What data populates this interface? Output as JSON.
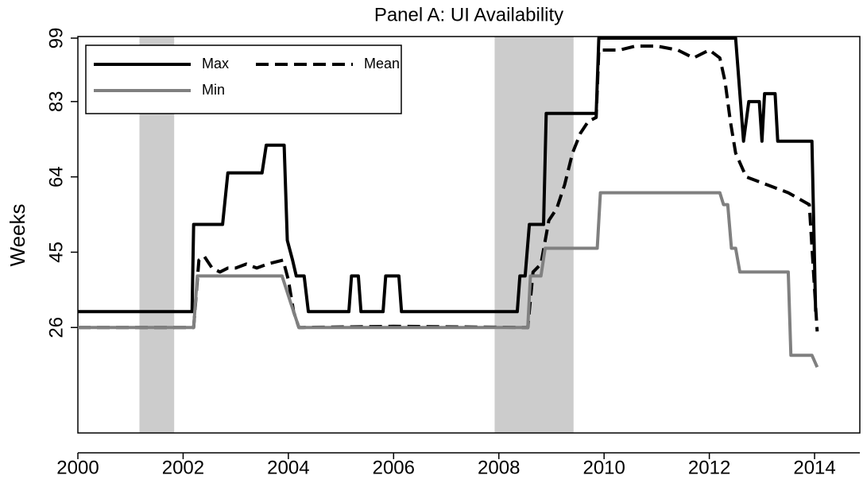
{
  "chart_data": {
    "type": "line",
    "title": "Panel A:  UI Availability",
    "y_label": "Weeks",
    "xlim": [
      2000,
      2014.86
    ],
    "xticks": [
      2000,
      2002,
      2004,
      2006,
      2008,
      2010,
      2012,
      2014
    ],
    "ylim": [
      0,
      99
    ],
    "yticks": [
      26,
      45,
      64,
      83,
      99
    ],
    "shaded_regions": [
      [
        2001.17,
        2001.83
      ],
      [
        2007.92,
        2009.42
      ]
    ],
    "shade_color": "#cccccc",
    "series": [
      {
        "name": "Max",
        "color": "#000000",
        "dash": "solid",
        "x": [
          2000,
          2002.17,
          2002.2,
          2002.75,
          2002.85,
          2003.5,
          2003.58,
          2003.92,
          2003.98,
          2004.08,
          2004.15,
          2004.3,
          2004.38,
          2005.15,
          2005.2,
          2005.33,
          2005.38,
          2005.8,
          2005.85,
          2006.1,
          2006.15,
          2008.35,
          2008.4,
          2008.5,
          2008.58,
          2008.85,
          2008.9,
          2009.85,
          2009.9,
          2012.5,
          2012.65,
          2012.75,
          2012.95,
          2013.0,
          2013.05,
          2013.25,
          2013.3,
          2013.95,
          2014.02
        ],
        "values": [
          30,
          30,
          52,
          52,
          65,
          65,
          72,
          72,
          48,
          43,
          39,
          39,
          30,
          30,
          39,
          39,
          30,
          30,
          39,
          39,
          30,
          30,
          39,
          39,
          52,
          52,
          80,
          80,
          99,
          99,
          73,
          83,
          83,
          73,
          85,
          85,
          73,
          73,
          30
        ]
      },
      {
        "name": "Mean",
        "color": "#000000",
        "dash": "dashed",
        "x": [
          2000,
          2002.2,
          2002.3,
          2002.4,
          2002.55,
          2002.7,
          2002.85,
          2003.0,
          2003.2,
          2003.4,
          2003.6,
          2003.9,
          2004.0,
          2004.1,
          2004.2,
          2006.0,
          2008.55,
          2008.65,
          2008.8,
          2008.95,
          2009.1,
          2009.25,
          2009.4,
          2009.55,
          2009.7,
          2009.85,
          2009.9,
          2010.3,
          2010.6,
          2011.0,
          2011.4,
          2011.7,
          2012.0,
          2012.2,
          2012.3,
          2012.4,
          2012.5,
          2012.7,
          2012.9,
          2013.1,
          2013.5,
          2013.9,
          2014.05
        ],
        "values": [
          26,
          26,
          43,
          44,
          41,
          40,
          41,
          41,
          42,
          41,
          42,
          43,
          38,
          30,
          26,
          26.3,
          26,
          40,
          42,
          53,
          56,
          62,
          70,
          75,
          78,
          79,
          96,
          96,
          97,
          97,
          96,
          94,
          96,
          94,
          88,
          78,
          70,
          64,
          63,
          62,
          60,
          57,
          25
        ]
      },
      {
        "name": "Min",
        "color": "#808080",
        "dash": "solid",
        "x": [
          2000,
          2002.2,
          2002.27,
          2003.88,
          2004.05,
          2004.2,
          2008.55,
          2008.6,
          2008.8,
          2008.88,
          2009.87,
          2009.93,
          2012.2,
          2012.27,
          2012.35,
          2012.42,
          2012.5,
          2012.58,
          2013.5,
          2013.55,
          2013.95,
          2014.05
        ],
        "values": [
          26,
          26,
          39,
          39,
          32,
          26,
          26,
          39,
          39,
          46,
          46,
          60,
          60,
          57,
          57,
          46,
          46,
          40,
          40,
          19,
          19,
          16
        ]
      }
    ]
  }
}
